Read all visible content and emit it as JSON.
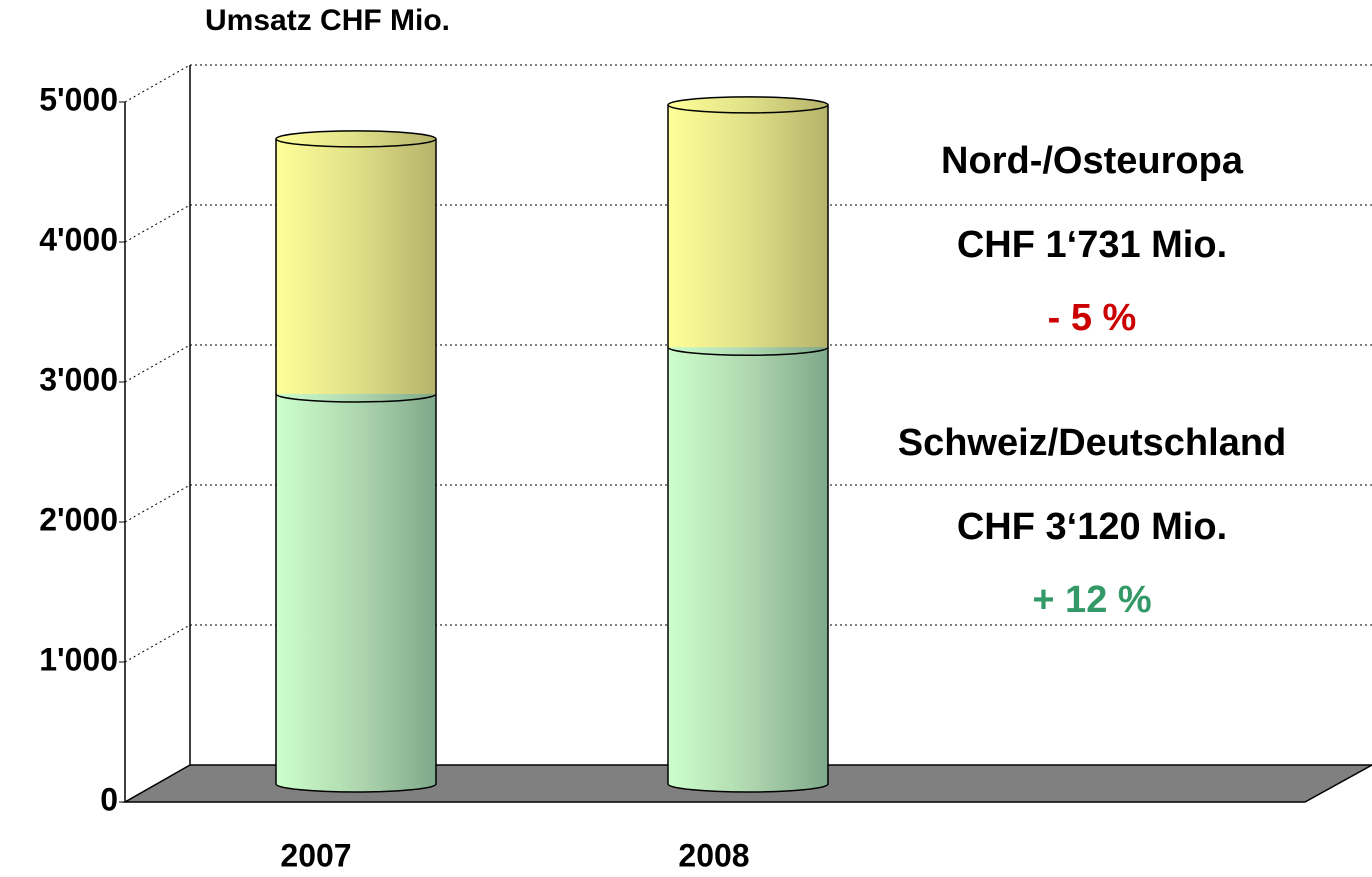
{
  "chart_data": {
    "type": "bar3d_stacked",
    "title": "Umsatz CHF Mio.",
    "categories": [
      "2007",
      "2008"
    ],
    "series": [
      {
        "name": "Schweiz/Deutschland",
        "color": "#ccffcc",
        "values": [
          2786,
          3120
        ]
      },
      {
        "name": "Nord-/Osteuropa",
        "color": "#ffff99",
        "values": [
          1822,
          1731
        ]
      }
    ],
    "ylim": [
      0,
      5000
    ],
    "yticks": [
      {
        "value": 0,
        "label": "0"
      },
      {
        "value": 1000,
        "label": "1'000"
      },
      {
        "value": 2000,
        "label": "2'000"
      },
      {
        "value": 3000,
        "label": "3'000"
      },
      {
        "value": 4000,
        "label": "4'000"
      },
      {
        "value": 5000,
        "label": "5'000"
      }
    ],
    "grid": true,
    "annotations": [
      {
        "series": 1,
        "lines": [
          {
            "text": "CHF 1‘731 Mio.",
            "color": "#000000"
          },
          {
            "text": "- 5 %",
            "color": "#cc0000"
          }
        ]
      },
      {
        "series": 0,
        "lines": [
          {
            "text": "CHF 3‘120 Mio.",
            "color": "#000000"
          },
          {
            "text": "+ 12 %",
            "color": "#339966"
          }
        ]
      }
    ]
  }
}
